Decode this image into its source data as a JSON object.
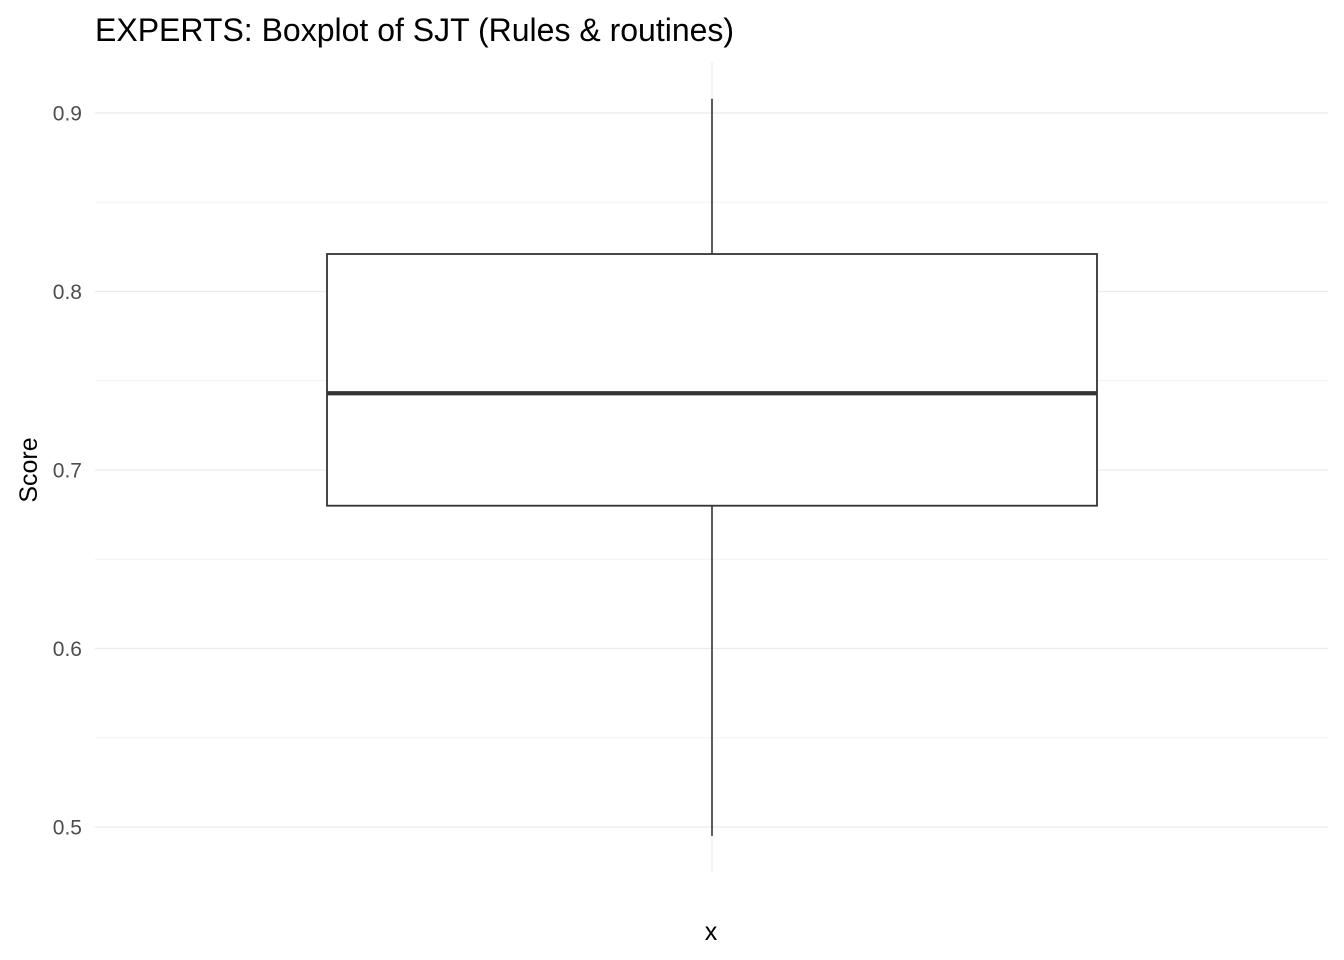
{
  "chart_data": {
    "type": "boxplot",
    "title": "EXPERTS: Boxplot of SJT (Rules & routines)",
    "xlabel": "x",
    "ylabel": "Score",
    "ylim": [
      0.475,
      0.93
    ],
    "yticks": [
      0.5,
      0.6,
      0.7,
      0.8,
      0.9
    ],
    "ytick_labels": [
      "0.5",
      "0.6",
      "0.7",
      "0.8",
      "0.9"
    ],
    "grid": true,
    "box": {
      "whisker_low": 0.495,
      "q1": 0.68,
      "median": 0.743,
      "q3": 0.821,
      "whisker_high": 0.908
    },
    "colors": {
      "box_line": "#333333",
      "grid": "#ebebeb"
    }
  }
}
